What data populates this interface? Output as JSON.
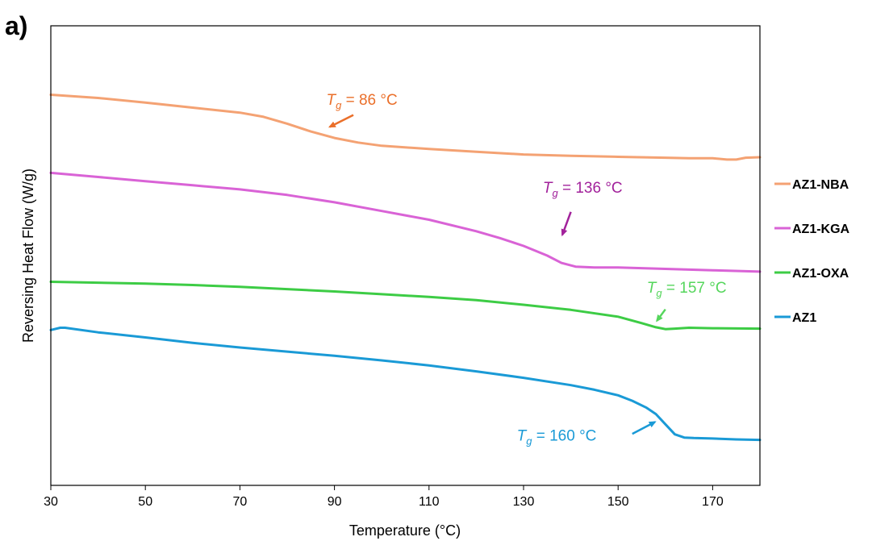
{
  "panel_label": "a)",
  "chart_data": {
    "type": "line",
    "title": "",
    "xlabel": "Temperature (°C)",
    "ylabel": "Reversing Heat Flow (W/g)",
    "xlim": [
      30,
      180
    ],
    "ylim": [
      0,
      100
    ],
    "y_tick_labels_shown": false,
    "x_ticks": [
      30,
      50,
      70,
      90,
      110,
      130,
      150,
      170
    ],
    "x_tick_labels": [
      "30",
      "50",
      "70",
      "90",
      "110",
      "130",
      "150",
      "170"
    ],
    "grid": false,
    "legend_position": "right",
    "series": [
      {
        "name": "AZ1-NBA",
        "color": "#f4a273",
        "x": [
          30,
          40,
          50,
          60,
          70,
          75,
          80,
          85,
          90,
          95,
          100,
          110,
          120,
          130,
          140,
          150,
          160,
          165,
          170,
          173,
          175,
          177,
          180
        ],
        "y": [
          85.0,
          84.3,
          83.3,
          82.2,
          81.1,
          80.2,
          78.7,
          77.0,
          75.6,
          74.6,
          73.9,
          73.2,
          72.6,
          72.0,
          71.7,
          71.5,
          71.3,
          71.2,
          71.2,
          70.9,
          70.9,
          71.3,
          71.4
        ]
      },
      {
        "name": "AZ1-KGA",
        "color": "#d963d6",
        "x": [
          30,
          40,
          50,
          60,
          70,
          80,
          90,
          100,
          110,
          120,
          125,
          130,
          135,
          138,
          141,
          145,
          150,
          160,
          170,
          180
        ],
        "y": [
          68.0,
          67.1,
          66.2,
          65.3,
          64.4,
          63.2,
          61.6,
          59.7,
          57.8,
          55.3,
          53.8,
          52.1,
          50.0,
          48.4,
          47.6,
          47.4,
          47.4,
          47.1,
          46.8,
          46.5
        ]
      },
      {
        "name": "AZ1-OXA",
        "color": "#3dcc45",
        "x": [
          30,
          40,
          50,
          60,
          70,
          80,
          90,
          100,
          110,
          120,
          130,
          140,
          150,
          155,
          158,
          160,
          162,
          165,
          170,
          180
        ],
        "y": [
          44.3,
          44.1,
          43.9,
          43.6,
          43.2,
          42.7,
          42.2,
          41.6,
          41.0,
          40.3,
          39.3,
          38.2,
          36.7,
          35.3,
          34.4,
          34.0,
          34.1,
          34.3,
          34.2,
          34.1
        ]
      },
      {
        "name": "AZ1",
        "color": "#1a9ad6",
        "x": [
          30,
          32,
          33,
          40,
          50,
          60,
          70,
          80,
          90,
          100,
          110,
          120,
          130,
          140,
          145,
          150,
          153,
          156,
          158,
          160,
          162,
          164,
          166,
          170,
          175,
          180
        ],
        "y": [
          33.8,
          34.3,
          34.3,
          33.3,
          32.2,
          31.0,
          30.0,
          29.1,
          28.2,
          27.2,
          26.1,
          24.8,
          23.4,
          21.8,
          20.8,
          19.6,
          18.4,
          16.9,
          15.5,
          13.3,
          11.1,
          10.4,
          10.3,
          10.2,
          10.0,
          9.9
        ]
      }
    ],
    "annotations": [
      {
        "series": "AZ1-NBA",
        "italic": "T",
        "sub": "g",
        "text": " = 86 °C",
        "color": "#ea6f2a",
        "label_x": 95.8,
        "label_y": 82.8,
        "arrow_from": [
          94.0,
          80.6
        ],
        "arrow_to": [
          89.0,
          78.0
        ]
      },
      {
        "series": "AZ1-KGA",
        "italic": "T",
        "sub": "g",
        "text": " = 136 °C",
        "color": "#a2229b",
        "label_x": 142.5,
        "label_y": 63.7,
        "arrow_from": [
          140.0,
          59.5
        ],
        "arrow_to": [
          138.2,
          54.5
        ]
      },
      {
        "series": "AZ1-OXA",
        "italic": "T",
        "sub": "g",
        "text": " = 157 °C",
        "color": "#55d65c",
        "label_x": 164.5,
        "label_y": 41.9,
        "arrow_from": [
          160.0,
          38.3
        ],
        "arrow_to": [
          158.2,
          35.8
        ]
      },
      {
        "series": "AZ1",
        "italic": "T",
        "sub": "g",
        "text": " = 160 °C",
        "color": "#1a9ad6",
        "label_x": 137.0,
        "label_y": 9.7,
        "arrow_from": [
          153.0,
          11.2
        ],
        "arrow_to": [
          157.8,
          13.8
        ]
      }
    ]
  }
}
